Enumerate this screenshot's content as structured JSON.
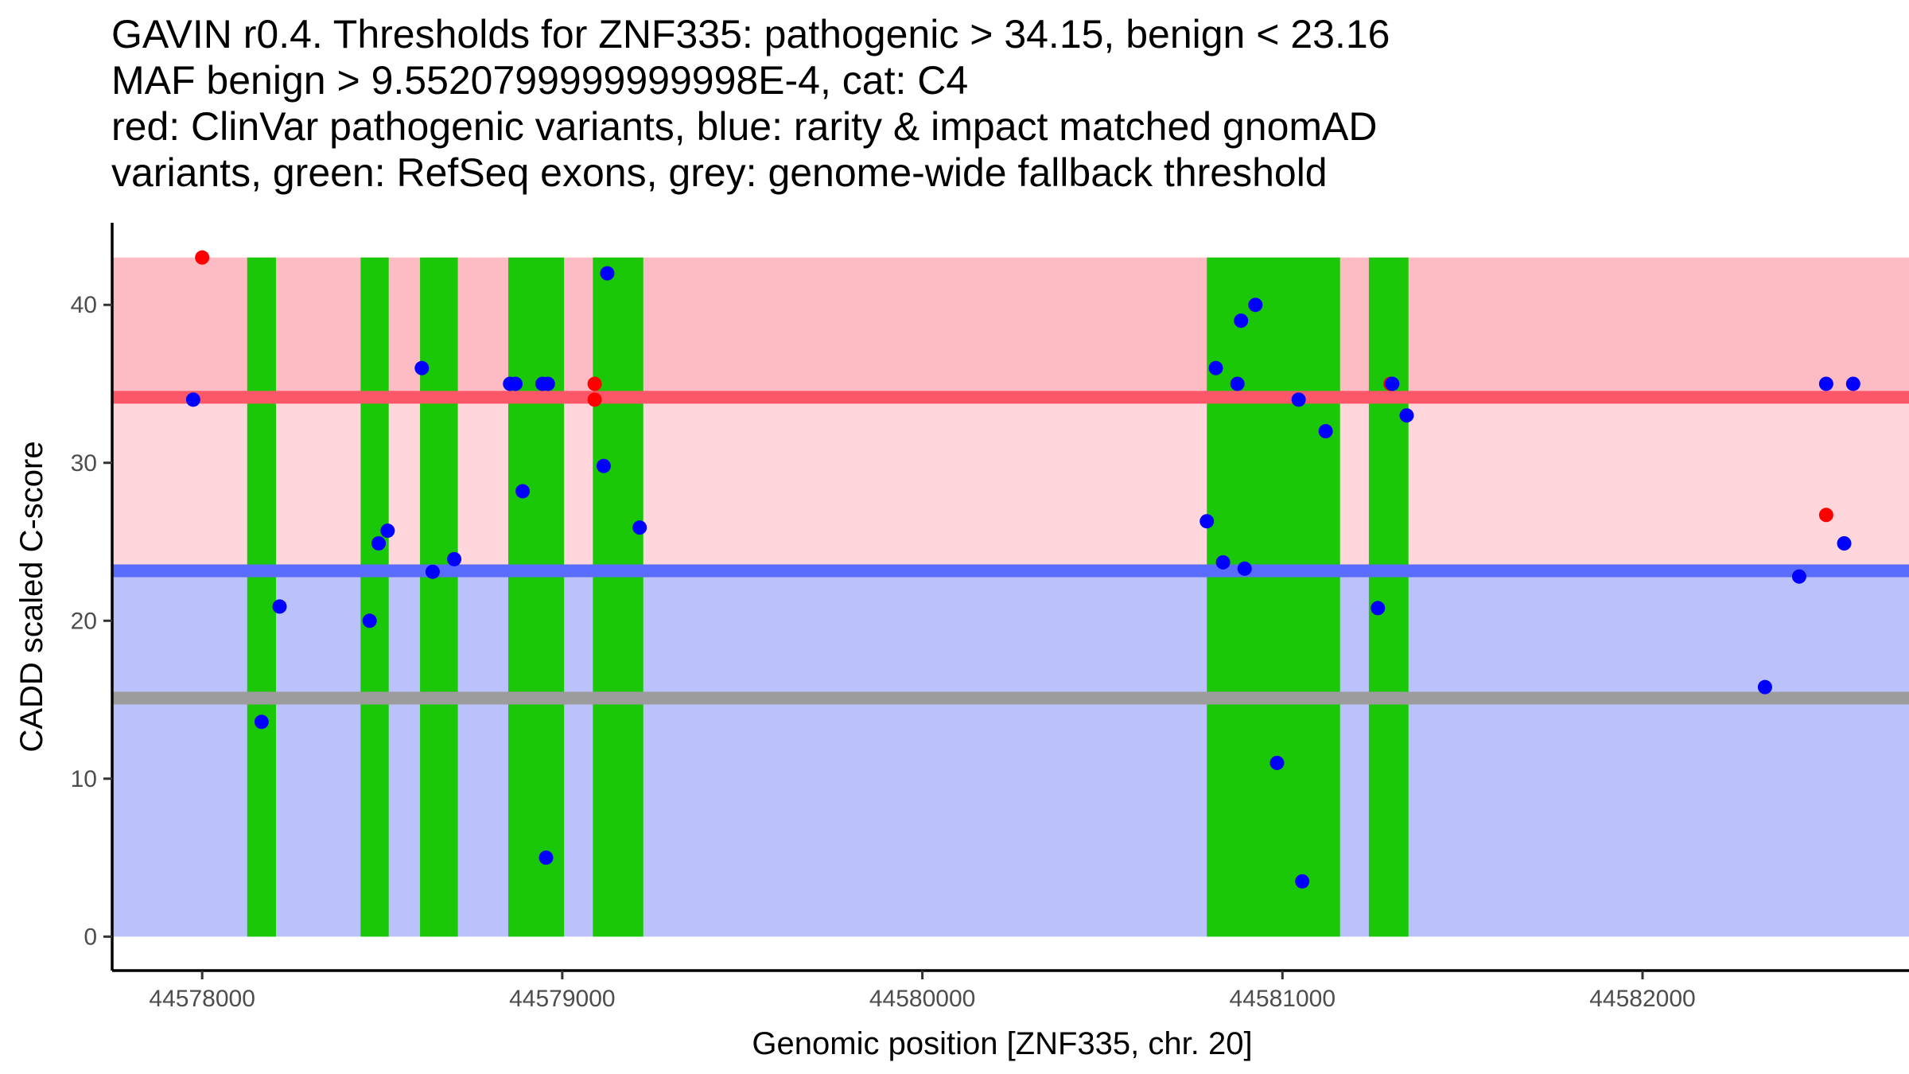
{
  "title_lines": [
    "GAVIN r0.4. Thresholds for ZNF335: pathogenic > 34.15, benign < 23.16",
    "MAF benign > 9.5520799999999998E-4, cat: C4",
    "red: ClinVar pathogenic variants, blue: rarity & impact matched gnomAD",
    "variants, green: RefSeq exons, grey: genome-wide fallback threshold"
  ],
  "chart_data": {
    "type": "scatter",
    "xlabel": "Genomic position [ZNF335, chr. 20]",
    "ylabel": "CADD scaled C-score",
    "xlim": [
      44577750,
      44582740
    ],
    "ylim": [
      -2.15,
      45.2
    ],
    "x_ticks": [
      44578000,
      44579000,
      44580000,
      44581000,
      44582000
    ],
    "y_ticks": [
      0,
      10,
      20,
      30,
      40
    ],
    "bands": [
      {
        "name": "pathogenic-zone",
        "ymin": 34.15,
        "ymax": 43,
        "color": "#fdbcc3"
      },
      {
        "name": "vus-zone",
        "ymin": 23.16,
        "ymax": 34.15,
        "color": "#fed6dc"
      },
      {
        "name": "benign-zone",
        "ymin": 0,
        "ymax": 23.16,
        "color": "#bbc1fb"
      }
    ],
    "threshold_lines": [
      {
        "name": "pathogenic-threshold",
        "y": 34.15,
        "color": "#fc5669"
      },
      {
        "name": "benign-threshold",
        "y": 23.16,
        "color": "#5a6cfb"
      },
      {
        "name": "fallback-threshold",
        "y": 15.1,
        "color": "#9c9c9c"
      }
    ],
    "exon_color": "#1bc808",
    "exons": [
      [
        44578125,
        44578205
      ],
      [
        44578440,
        44578518
      ],
      [
        44578605,
        44578710
      ],
      [
        44578850,
        44579005
      ],
      [
        44579085,
        44579225
      ],
      [
        44580790,
        44581160
      ],
      [
        44581240,
        44581350
      ]
    ],
    "series": [
      {
        "name": "ClinVar pathogenic",
        "color": "#ff0000",
        "points": [
          [
            44578000,
            43
          ],
          [
            44579090,
            35
          ],
          [
            44579090,
            34
          ],
          [
            44581300,
            35
          ],
          [
            44582510,
            26.7
          ]
        ]
      },
      {
        "name": "gnomAD matched",
        "color": "#0000ff",
        "points": [
          [
            44577975,
            34
          ],
          [
            44578165,
            13.6
          ],
          [
            44578215,
            20.9
          ],
          [
            44578465,
            20
          ],
          [
            44578490,
            24.9
          ],
          [
            44578515,
            25.7
          ],
          [
            44578610,
            36
          ],
          [
            44578640,
            23.1
          ],
          [
            44578700,
            23.9
          ],
          [
            44578855,
            35
          ],
          [
            44578870,
            35
          ],
          [
            44578890,
            28.2
          ],
          [
            44578945,
            35
          ],
          [
            44578960,
            35
          ],
          [
            44578955,
            5
          ],
          [
            44579115,
            29.8
          ],
          [
            44579125,
            42
          ],
          [
            44579215,
            25.9
          ],
          [
            44580790,
            26.3
          ],
          [
            44580815,
            36
          ],
          [
            44580835,
            23.7
          ],
          [
            44580875,
            35
          ],
          [
            44580885,
            39
          ],
          [
            44580895,
            23.3
          ],
          [
            44580925,
            40
          ],
          [
            44580985,
            11
          ],
          [
            44581045,
            34
          ],
          [
            44581055,
            3.5
          ],
          [
            44581120,
            32
          ],
          [
            44581265,
            20.8
          ],
          [
            44581305,
            35
          ],
          [
            44581345,
            33
          ],
          [
            44582340,
            15.8
          ],
          [
            44582435,
            22.8
          ],
          [
            44582510,
            35
          ],
          [
            44582560,
            24.9
          ],
          [
            44582585,
            35
          ]
        ]
      }
    ]
  }
}
